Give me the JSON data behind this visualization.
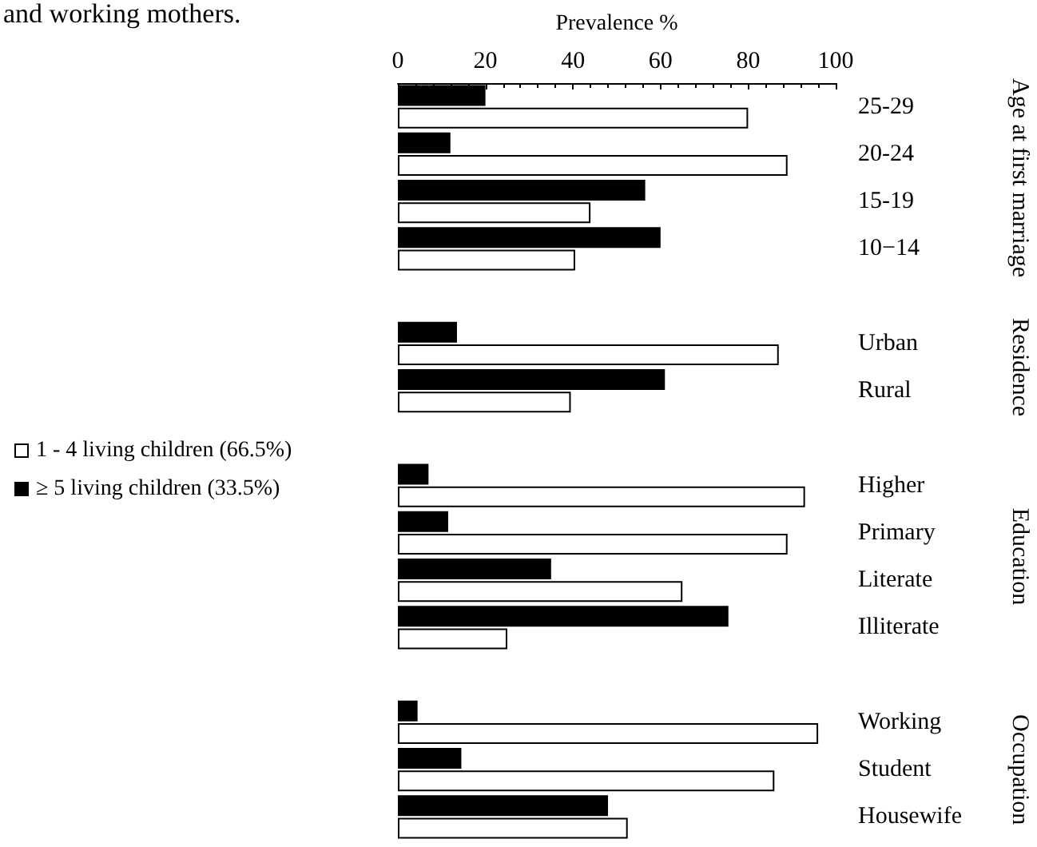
{
  "chart_data": {
    "type": "bar",
    "orientation": "horizontal",
    "xlabel": "Prevalence %",
    "categories": [
      "25-29",
      "20-24",
      "15-19",
      "10−14",
      null,
      "Urban",
      "Rural",
      null,
      "Higher",
      "Primary",
      "Literate",
      "Illiterate",
      null,
      "Working",
      "Student",
      "Housewife"
    ],
    "series": [
      {
        "name": "≥ 5 living children (33.5%)",
        "color": "#000000",
        "values": [
          20,
          12,
          56.5,
          60,
          null,
          13.5,
          61,
          null,
          7,
          11.5,
          35,
          75.5,
          null,
          4.5,
          14.5,
          48
        ]
      },
      {
        "name": "1 - 4 living children (66.5%)",
        "color": "#ffffff",
        "values": [
          80,
          89,
          44,
          40.5,
          null,
          87,
          39.5,
          null,
          93,
          89,
          65,
          25,
          null,
          96,
          86,
          52.5
        ]
      }
    ],
    "xlim": [
      0,
      100
    ],
    "xticks": [
      0,
      20,
      40,
      60,
      80,
      100
    ],
    "grid": false,
    "legend": "left",
    "annotations": [
      "and working mothers.",
      "Age at first marriage",
      "Residence",
      "Education",
      "Occupation"
    ]
  }
}
